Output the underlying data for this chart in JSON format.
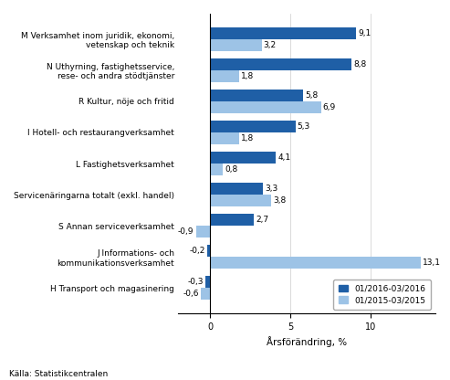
{
  "categories": [
    "M Verksamhet inom juridik, ekonomi,\nvetenskap och teknik",
    "N Uthyrning, fastighetsservice,\nrese- och andra stödtjänster",
    "R Kultur, nöje och fritid",
    "I Hotell- och restaurangverksamhet",
    "L Fastighetsverksamhet",
    "Servicenäringarna totalt (exkl. handel)",
    "S Annan serviceverksamhet",
    "J Informations- och\nkommunikationsverksamhet",
    "H Transport och magasinering"
  ],
  "values_2016": [
    9.1,
    8.8,
    5.8,
    5.3,
    4.1,
    3.3,
    2.7,
    -0.2,
    -0.3
  ],
  "values_2015": [
    3.2,
    1.8,
    6.9,
    1.8,
    0.8,
    3.8,
    -0.9,
    13.1,
    -0.6
  ],
  "color_2016": "#1F5FA6",
  "color_2015": "#9DC3E6",
  "xlabel": "Årsförändring, %",
  "legend_2016": "01/2016-03/2016",
  "legend_2015": "01/2015-03/2015",
  "source": "Källa: Statistikcentralen",
  "xlim": [
    -2,
    14
  ],
  "bar_height": 0.38
}
